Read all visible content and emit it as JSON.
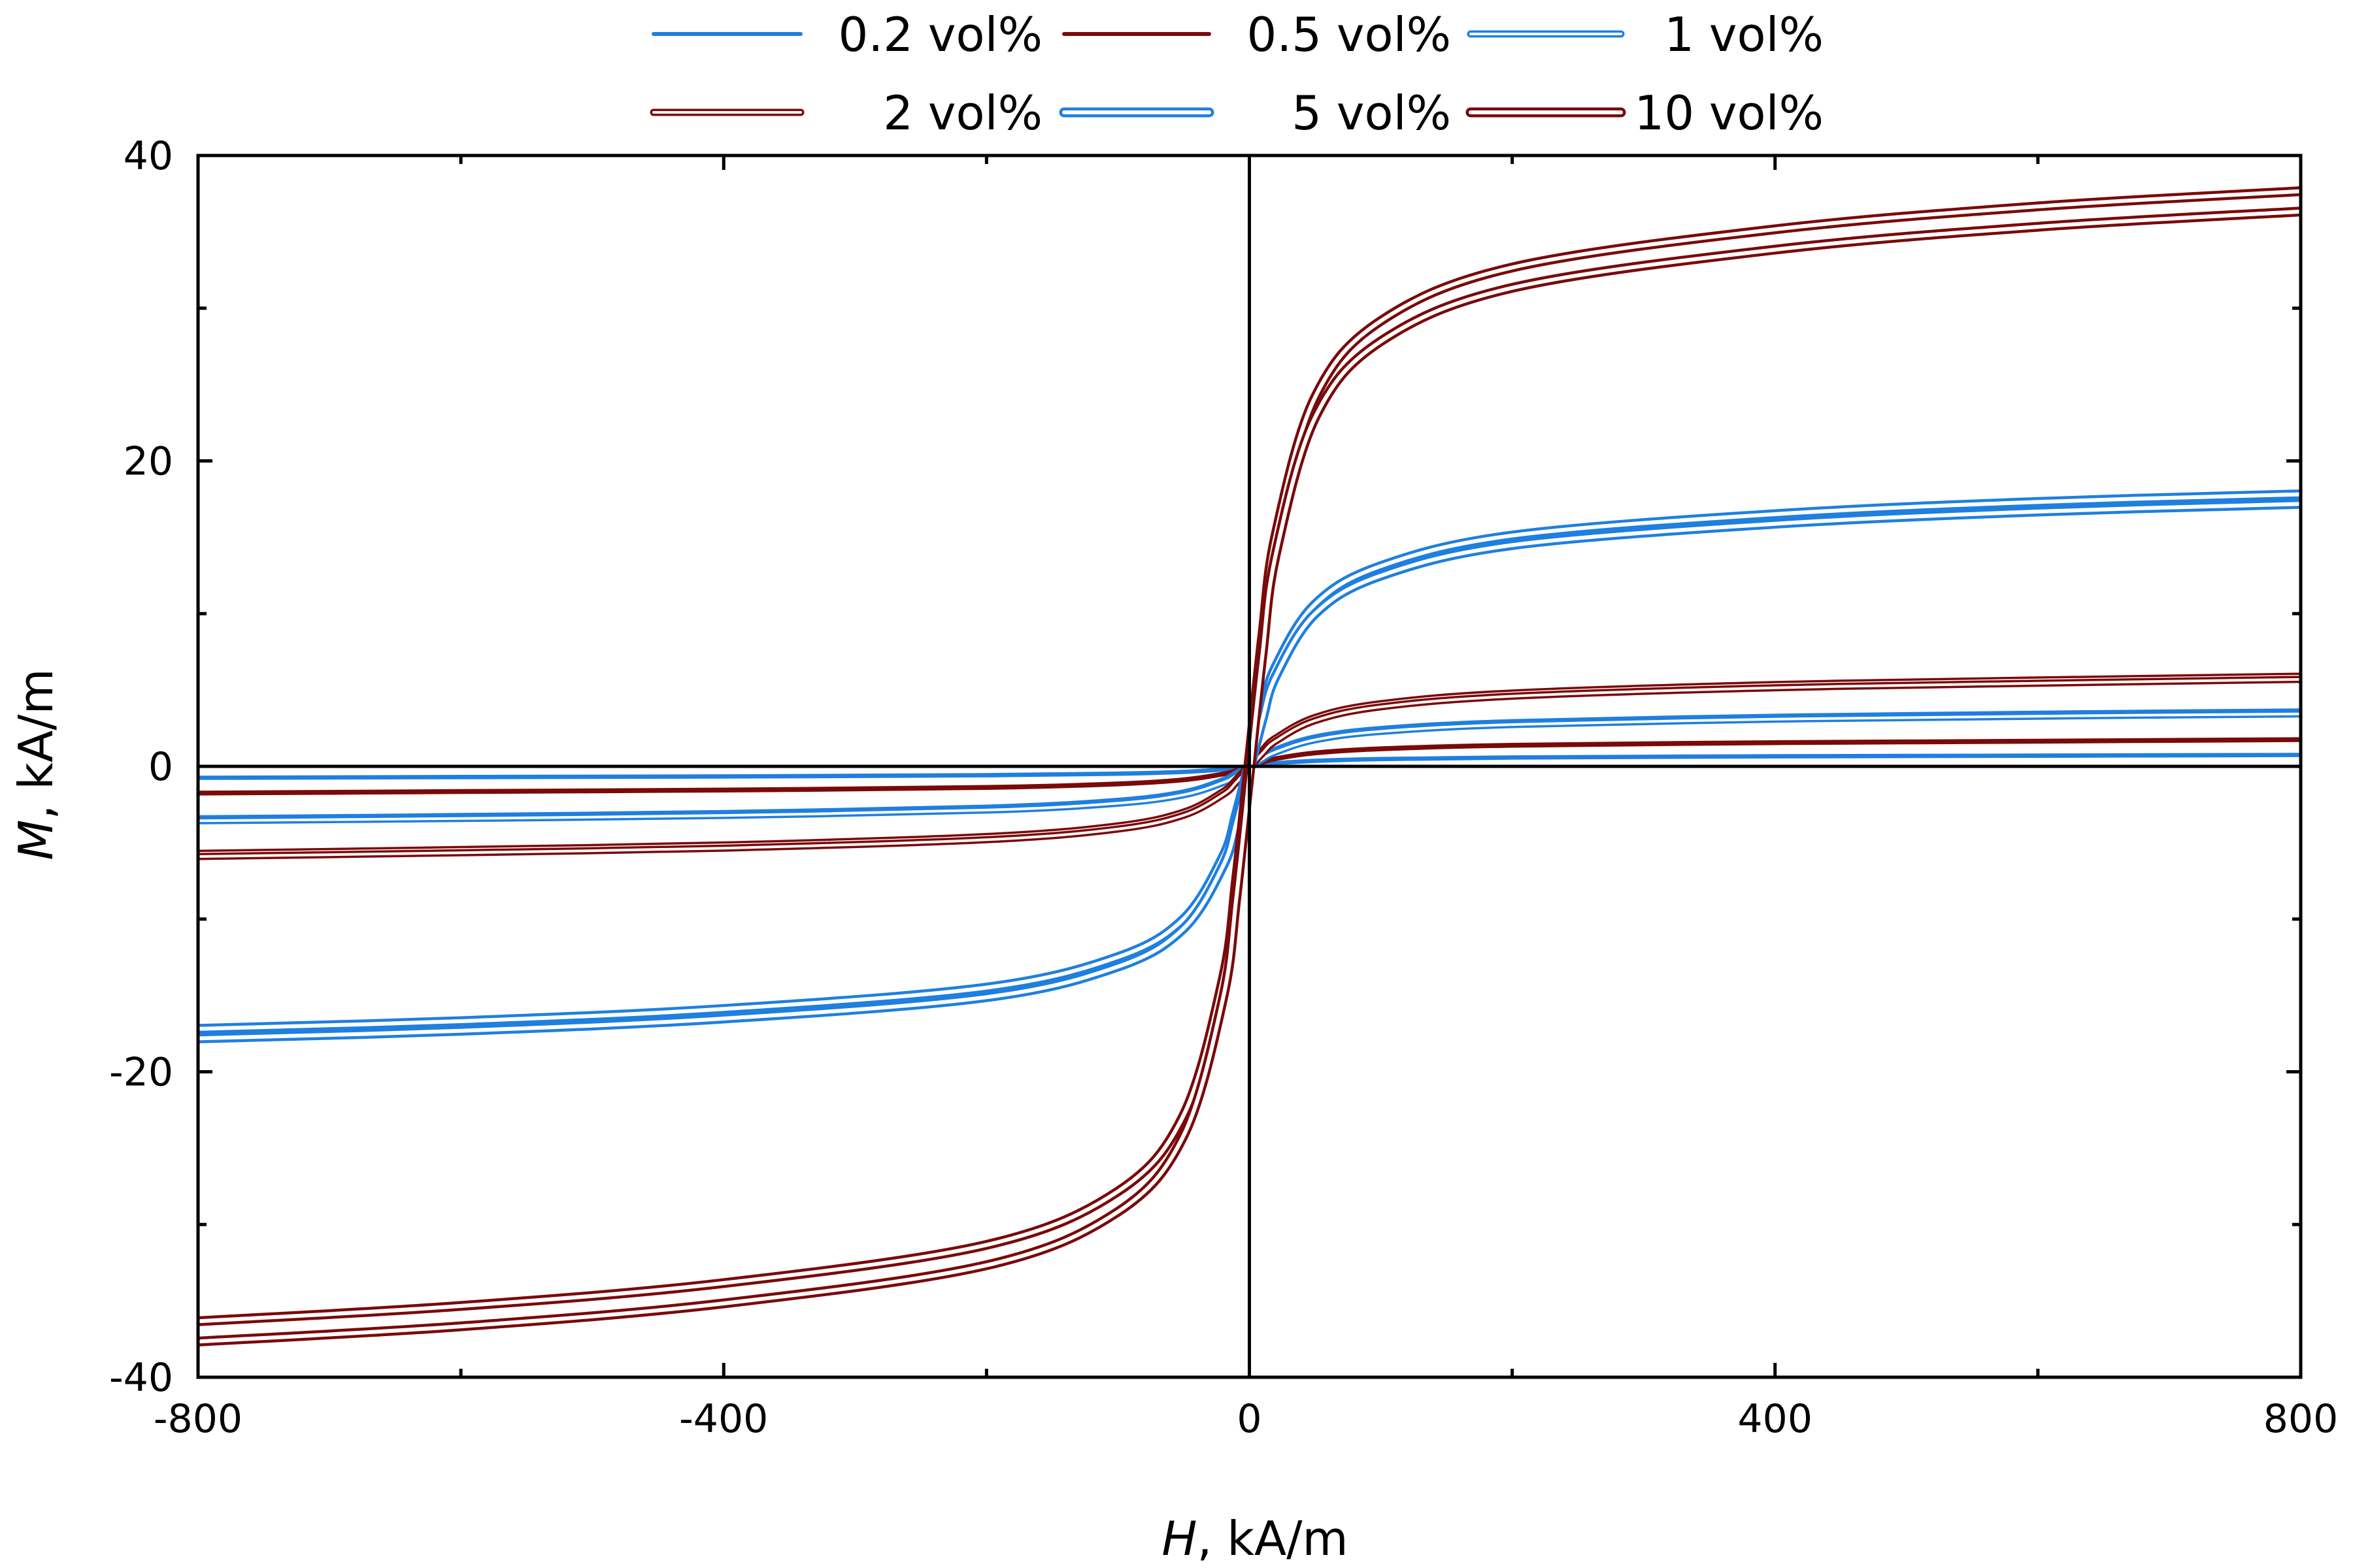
{
  "chart_data": {
    "type": "line",
    "title": "",
    "xlabel": {
      "symbol": "H",
      "unit": ", kA/m"
    },
    "ylabel": {
      "symbol": "M",
      "unit": ", kA/m"
    },
    "xlim": [
      -800,
      800
    ],
    "ylim": [
      -40,
      40
    ],
    "xticks": [
      -800,
      -400,
      0,
      400,
      800
    ],
    "yticks": [
      -40,
      -20,
      0,
      20,
      40
    ],
    "xtick_labels": [
      "-800",
      "-400",
      "0",
      "400",
      "800"
    ],
    "ytick_labels": [
      "-40",
      "-20",
      "0",
      "20",
      "40"
    ],
    "zero_lines": true,
    "legend_position": "top-center, above plot, 2 rows x 3 columns",
    "colors": {
      "blue": "#1f7fdf",
      "red": "#7a0a0a",
      "axis": "#000000"
    },
    "series": [
      {
        "name": "0.2 vol%",
        "color": "#1f7fdf",
        "style": "single",
        "x": [
          -800,
          -600,
          -400,
          -200,
          -100,
          -50,
          -20,
          -10,
          0,
          10,
          20,
          50,
          100,
          200,
          400,
          600,
          800
        ],
        "y": [
          -0.75,
          -0.7,
          -0.66,
          -0.58,
          -0.48,
          -0.36,
          -0.2,
          -0.11,
          0,
          0.11,
          0.2,
          0.36,
          0.48,
          0.58,
          0.66,
          0.7,
          0.75
        ]
      },
      {
        "name": "0.5 vol%",
        "color": "#7a0a0a",
        "style": "single",
        "x": [
          -800,
          -600,
          -400,
          -200,
          -100,
          -50,
          -20,
          -10,
          0,
          10,
          20,
          50,
          100,
          200,
          400,
          600,
          800
        ],
        "y": [
          -1.75,
          -1.65,
          -1.55,
          -1.38,
          -1.15,
          -0.88,
          -0.5,
          -0.27,
          0,
          0.27,
          0.5,
          0.88,
          1.15,
          1.38,
          1.55,
          1.65,
          1.75
        ]
      },
      {
        "name": "1 vol%",
        "color": "#1f7fdf",
        "style": "double",
        "x": [
          -800,
          -600,
          -400,
          -200,
          -100,
          -50,
          -20,
          -10,
          0,
          10,
          20,
          50,
          100,
          200,
          400,
          600,
          800
        ],
        "y": [
          -3.5,
          -3.35,
          -3.15,
          -2.8,
          -2.35,
          -1.8,
          -1.0,
          -0.55,
          0,
          0.55,
          1.0,
          1.8,
          2.35,
          2.8,
          3.15,
          3.35,
          3.5
        ]
      },
      {
        "name": "2 vol%",
        "color": "#7a0a0a",
        "style": "double",
        "x": [
          -800,
          -600,
          -400,
          -200,
          -100,
          -50,
          -20,
          -10,
          0,
          10,
          20,
          50,
          100,
          200,
          400,
          600,
          800
        ],
        "y": [
          -5.8,
          -5.55,
          -5.25,
          -4.7,
          -4.0,
          -3.1,
          -1.75,
          -0.95,
          0,
          0.95,
          1.75,
          3.1,
          4.0,
          4.7,
          5.25,
          5.55,
          5.8
        ]
      },
      {
        "name": "5 vol%",
        "color": "#1f7fdf",
        "style": "double-thick",
        "x": [
          -800,
          -600,
          -400,
          -200,
          -100,
          -50,
          -20,
          -10,
          0,
          10,
          20,
          50,
          100,
          200,
          400,
          600,
          800
        ],
        "y": [
          -17.5,
          -17.0,
          -16.2,
          -14.8,
          -12.8,
          -10.3,
          -6.2,
          -3.4,
          0,
          3.4,
          6.2,
          10.3,
          12.8,
          14.8,
          16.2,
          17.0,
          17.5
        ]
      },
      {
        "name": "10 vol%",
        "color": "#7a0a0a",
        "style": "double-thick",
        "x": [
          -800,
          -600,
          -400,
          -200,
          -100,
          -50,
          -20,
          -10,
          0,
          10,
          20,
          50,
          100,
          200,
          400,
          600,
          800
        ],
        "y": [
          -37.0,
          -36.0,
          -34.5,
          -32.0,
          -28.5,
          -23.5,
          -14.5,
          -8.0,
          0,
          8.0,
          14.5,
          23.5,
          28.5,
          32.0,
          34.5,
          36.0,
          37.0
        ]
      }
    ]
  }
}
